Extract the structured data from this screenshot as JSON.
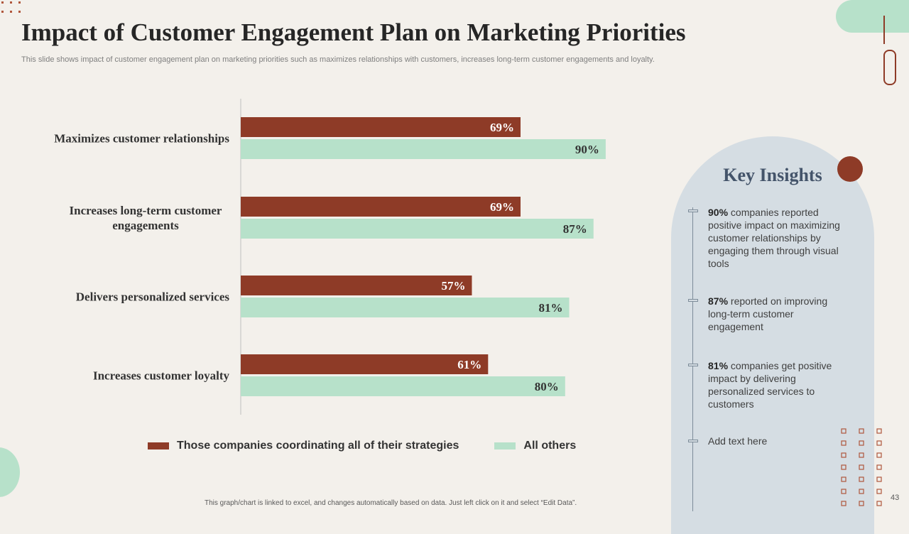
{
  "slide": {
    "title": "Impact of Customer Engagement Plan on Marketing Priorities",
    "subtitle": "This slide shows impact of customer engagement plan on marketing priorities such as maximizes relationships with customers, increases long-term customer engagements and loyalty.",
    "footnote": "This graph/chart is linked to excel, and changes automatically based on data. Just left click on it and select “Edit Data”.",
    "page_number": "43"
  },
  "colors": {
    "series_a": "#8e3b27",
    "series_b": "#b7e1ca",
    "panel": "#d5dde3",
    "accent_title": "#44546a"
  },
  "chart_data": {
    "type": "bar",
    "orientation": "horizontal",
    "title": "",
    "xlabel": "",
    "ylabel": "",
    "xlim": [
      0,
      100
    ],
    "unit": "%",
    "categories": [
      [
        "Maximizes customer relationships"
      ],
      [
        "Increases long-term customer",
        "engagements"
      ],
      [
        "Delivers personalized services"
      ],
      [
        "Increases customer loyalty"
      ]
    ],
    "series": [
      {
        "name": "Those companies coordinating all of their strategies",
        "values": [
          69,
          69,
          57,
          61
        ]
      },
      {
        "name": "All others",
        "values": [
          90,
          87,
          81,
          80
        ]
      }
    ],
    "legend_position": "bottom"
  },
  "insights": {
    "title": "Key Insights",
    "items": [
      {
        "highlight": "90%",
        "text": " companies reported positive impact on maximizing customer relationships by engaging them through visual tools"
      },
      {
        "highlight": "87%",
        "text": " reported on improving long-term customer engagement"
      },
      {
        "highlight": "81%",
        "text": " companies get positive impact by delivering personalized services to customers"
      },
      {
        "highlight": "",
        "text": "Add text here"
      }
    ]
  }
}
